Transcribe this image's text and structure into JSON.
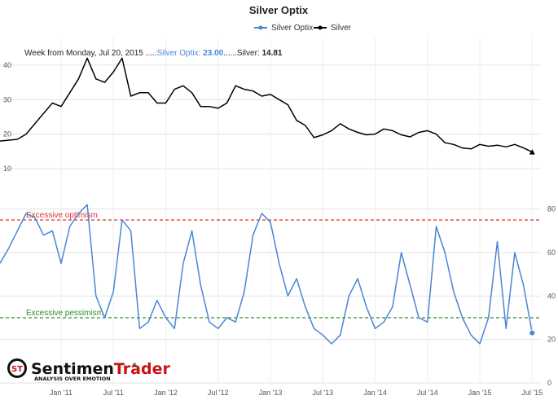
{
  "chart_data": {
    "type": "line",
    "title": "Silver Optix",
    "legend": {
      "position": "top-right",
      "items": [
        {
          "label": "Silver Optix",
          "color": "#4a86d4"
        },
        {
          "label": "Silver",
          "color": "#000000"
        }
      ]
    },
    "tooltip": {
      "prefix": "Week from Monday, Jul 20, 2015 .....",
      "optix_label": "Silver Optix: ",
      "optix_value": "23.00",
      "separator": "......",
      "silver_label": "Silver: ",
      "silver_value": "14.81"
    },
    "x_labels": [
      "Jan '11",
      "Jul '11",
      "Jan '12",
      "Jul '12",
      "Jan '13",
      "Jul '13",
      "Jan '14",
      "Jul '14",
      "Jan '15",
      "Jul '15"
    ],
    "x_range": [
      "2010-06",
      "2015-08"
    ],
    "upper_panel": {
      "series": "Silver",
      "ylim": [
        10,
        48
      ],
      "yticks": [
        "40",
        "30",
        "20",
        "10"
      ],
      "dates": [
        "2010-06",
        "2010-08",
        "2010-09",
        "2010-10",
        "2010-11",
        "2010-12",
        "2011-01",
        "2011-02",
        "2011-03",
        "2011-04",
        "2011-05",
        "2011-06",
        "2011-07",
        "2011-08",
        "2011-09",
        "2011-10",
        "2011-11",
        "2011-12",
        "2012-01",
        "2012-02",
        "2012-03",
        "2012-04",
        "2012-05",
        "2012-06",
        "2012-07",
        "2012-08",
        "2012-09",
        "2012-10",
        "2012-11",
        "2012-12",
        "2013-01",
        "2013-02",
        "2013-03",
        "2013-04",
        "2013-05",
        "2013-06",
        "2013-07",
        "2013-08",
        "2013-09",
        "2013-10",
        "2013-11",
        "2013-12",
        "2014-01",
        "2014-02",
        "2014-03",
        "2014-04",
        "2014-05",
        "2014-06",
        "2014-07",
        "2014-08",
        "2014-09",
        "2014-10",
        "2014-11",
        "2014-12",
        "2015-01",
        "2015-02",
        "2015-03",
        "2015-04",
        "2015-05",
        "2015-06",
        "2015-07"
      ],
      "values": [
        18,
        18.5,
        20,
        23,
        26,
        29,
        28,
        32,
        36,
        42,
        36,
        35,
        38,
        42,
        31,
        32,
        32,
        29,
        29,
        33,
        34,
        32,
        28,
        28,
        27.5,
        29,
        34,
        33,
        32.5,
        31,
        31.5,
        30,
        28.5,
        24,
        22.5,
        19,
        19.8,
        21,
        23,
        21.5,
        20.5,
        19.8,
        20,
        21.5,
        21,
        19.8,
        19.2,
        20.5,
        21,
        20,
        17.5,
        17,
        16,
        15.7,
        17,
        16.5,
        16.8,
        16.3,
        17,
        16,
        14.81
      ]
    },
    "lower_panel": {
      "series": "Silver Optix",
      "ylim": [
        0,
        90
      ],
      "yticks": [
        "80",
        "60",
        "40",
        "20",
        "0"
      ],
      "dates": [
        "2010-06",
        "2010-07",
        "2010-08",
        "2010-09",
        "2010-10",
        "2010-11",
        "2010-12",
        "2011-01",
        "2011-02",
        "2011-03",
        "2011-04",
        "2011-05",
        "2011-06",
        "2011-07",
        "2011-08",
        "2011-09",
        "2011-10",
        "2011-11",
        "2011-12",
        "2012-01",
        "2012-02",
        "2012-03",
        "2012-04",
        "2012-05",
        "2012-06",
        "2012-07",
        "2012-08",
        "2012-09",
        "2012-10",
        "2012-11",
        "2012-12",
        "2013-01",
        "2013-02",
        "2013-03",
        "2013-04",
        "2013-05",
        "2013-06",
        "2013-07",
        "2013-08",
        "2013-09",
        "2013-10",
        "2013-11",
        "2013-12",
        "2014-01",
        "2014-02",
        "2014-03",
        "2014-04",
        "2014-05",
        "2014-06",
        "2014-07",
        "2014-08",
        "2014-09",
        "2014-10",
        "2014-11",
        "2014-12",
        "2015-01",
        "2015-02",
        "2015-03",
        "2015-04",
        "2015-05",
        "2015-06",
        "2015-07"
      ],
      "values": [
        55,
        62,
        70,
        78,
        76,
        68,
        70,
        55,
        72,
        78,
        82,
        40,
        30,
        42,
        75,
        70,
        25,
        28,
        38,
        30,
        25,
        55,
        70,
        45,
        28,
        25,
        30,
        28,
        42,
        68,
        78,
        74,
        55,
        40,
        48,
        35,
        25,
        22,
        18,
        22,
        40,
        48,
        35,
        25,
        28,
        35,
        60,
        45,
        30,
        28,
        72,
        60,
        42,
        30,
        22,
        18,
        30,
        65,
        25,
        60,
        45,
        23
      ]
    },
    "bands": [
      {
        "label": "Excessive optimism",
        "value": 75,
        "color": "#e03030"
      },
      {
        "label": "Excessive pessimism",
        "value": 30,
        "color": "#2e8b2e"
      }
    ],
    "grid": true
  },
  "brand": {
    "logo_mark": "ST",
    "name_part1": "Sentimen",
    "name_part2": "Trader",
    "reg_mark": "®",
    "tagline": "ANALYSIS OVER EMOTION"
  }
}
